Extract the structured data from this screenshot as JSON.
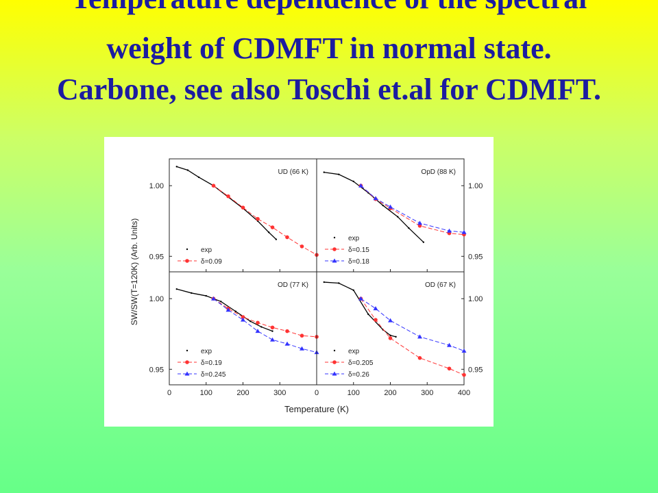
{
  "title": [
    "Temperature dependence of the spectral",
    "weight of CDMFT in normal state.",
    "Carbone, see also Toschi  et.al for CDMFT."
  ],
  "figure": {
    "xlabel": "Temperature (K)",
    "ylabel": "SW/SW(T=120K) (Arb. Units)"
  },
  "chart_data": [
    {
      "type": "line",
      "title": "UD (66 K)",
      "xlim": [
        0,
        400
      ],
      "xticks": [
        0,
        100,
        200,
        300
      ],
      "ylim": [
        0.939,
        1.019
      ],
      "yticks": [
        {
          "value": 1,
          "label": "1.00"
        },
        0.95
      ],
      "legend": "lower left",
      "series": [
        {
          "name": "exp",
          "color": "#000000",
          "marker": "dot",
          "x": [
            20,
            50,
            80,
            120,
            160,
            200,
            240,
            270,
            290
          ],
          "values": [
            1.0135,
            1.011,
            1.006,
            1.0,
            0.992,
            0.984,
            0.975,
            0.967,
            0.962
          ]
        },
        {
          "name": "δ=0.09",
          "color": "#ff3333",
          "marker": "circle",
          "x": [
            120,
            160,
            200,
            240,
            280,
            320,
            360,
            400
          ],
          "values": [
            1.0,
            0.9925,
            0.9845,
            0.9765,
            0.9705,
            0.9635,
            0.957,
            0.951
          ]
        }
      ]
    },
    {
      "type": "line",
      "title": "OpD (88 K)",
      "xlim": [
        0,
        400
      ],
      "xticks": [
        0,
        100,
        200,
        300,
        400
      ],
      "ylim": [
        0.939,
        1.019
      ],
      "yticks": [
        {
          "value": 1,
          "label": "1.00"
        },
        0.95
      ],
      "legend": "lower left",
      "series": [
        {
          "name": "exp",
          "color": "#000000",
          "marker": "dot",
          "x": [
            20,
            60,
            100,
            140,
            180,
            220,
            250,
            290
          ],
          "values": [
            1.0095,
            1.008,
            1.003,
            0.995,
            0.986,
            0.978,
            0.97,
            0.96
          ]
        },
        {
          "name": "δ=0.15",
          "color": "#ff3333",
          "marker": "circle",
          "x": [
            120,
            160,
            200,
            280,
            360,
            400
          ],
          "values": [
            1.0,
            0.9905,
            0.984,
            0.9716,
            0.9663,
            0.9654
          ]
        },
        {
          "name": "δ=0.18",
          "color": "#3333ff",
          "marker": "triangle",
          "x": [
            120,
            160,
            200,
            280,
            360,
            400
          ],
          "values": [
            1.0,
            0.991,
            0.985,
            0.9735,
            0.968,
            0.967
          ]
        }
      ]
    },
    {
      "type": "line",
      "title": "OD (77 K)",
      "xlim": [
        0,
        400
      ],
      "xticks": [
        0,
        100,
        200,
        300
      ],
      "ylim": [
        0.939,
        1.019
      ],
      "yticks": [
        {
          "value": 1,
          "label": "1.00"
        },
        0.95
      ],
      "legend": "lower left",
      "series": [
        {
          "name": "exp",
          "color": "#000000",
          "marker": "dot",
          "x": [
            20,
            60,
            100,
            140,
            180,
            220,
            250,
            280
          ],
          "values": [
            1.0068,
            1.004,
            1.002,
            0.998,
            0.991,
            0.984,
            0.98,
            0.977
          ]
        },
        {
          "name": "δ=0.19",
          "color": "#ff3333",
          "marker": "circle",
          "x": [
            120,
            160,
            200,
            240,
            280,
            320,
            360,
            400
          ],
          "values": [
            1.0,
            0.993,
            0.987,
            0.983,
            0.9796,
            0.977,
            0.9738,
            0.973
          ]
        },
        {
          "name": "δ=0.245",
          "color": "#3333ff",
          "marker": "triangle",
          "x": [
            120,
            160,
            200,
            240,
            280,
            320,
            360,
            400
          ],
          "values": [
            1.0,
            0.992,
            0.985,
            0.977,
            0.9709,
            0.968,
            0.9646,
            0.962
          ]
        }
      ]
    },
    {
      "type": "line",
      "title": "OD (67 K)",
      "xlim": [
        0,
        400
      ],
      "xticks": [
        0,
        100,
        200,
        300,
        400
      ],
      "ylim": [
        0.939,
        1.019
      ],
      "yticks": [
        {
          "value": 1,
          "label": "1.00"
        },
        0.95
      ],
      "legend": "lower left",
      "series": [
        {
          "name": "exp",
          "color": "#000000",
          "marker": "dot",
          "x": [
            20,
            60,
            100,
            140,
            180,
            200,
            215
          ],
          "values": [
            1.0117,
            1.011,
            1.006,
            0.989,
            0.978,
            0.974,
            0.973
          ]
        },
        {
          "name": "δ=0.205",
          "color": "#ff3333",
          "marker": "circle",
          "x": [
            120,
            160,
            200,
            280,
            360,
            400
          ],
          "values": [
            1.0,
            0.985,
            0.972,
            0.958,
            0.9505,
            0.946
          ]
        },
        {
          "name": "δ=0.26",
          "color": "#3333ff",
          "marker": "triangle",
          "x": [
            120,
            160,
            200,
            280,
            360,
            400
          ],
          "values": [
            1.0,
            0.993,
            0.9845,
            0.973,
            0.967,
            0.963
          ]
        }
      ]
    }
  ]
}
